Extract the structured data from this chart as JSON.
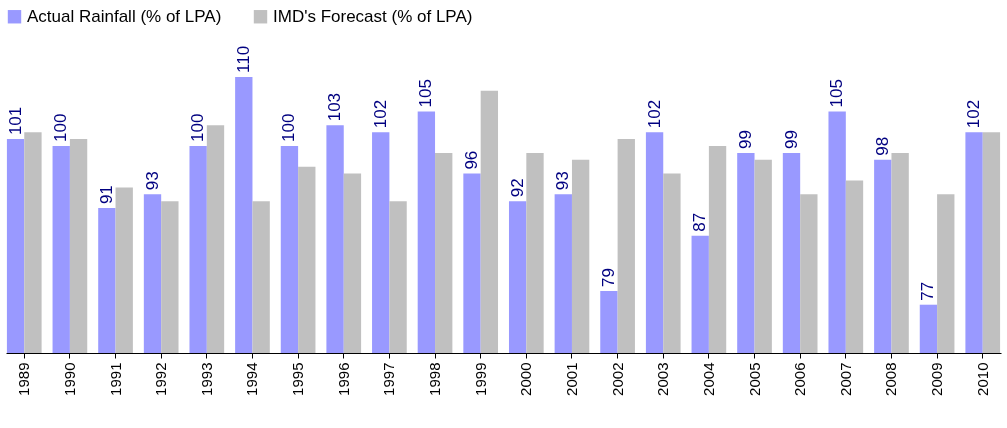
{
  "chart_data": {
    "type": "bar",
    "categories": [
      "1989",
      "1990",
      "1991",
      "1992",
      "1993",
      "1994",
      "1995",
      "1996",
      "1997",
      "1998",
      "1999",
      "2000",
      "2001",
      "2002",
      "2003",
      "2004",
      "2005",
      "2006",
      "2007",
      "2008",
      "2009",
      "2010"
    ],
    "series": [
      {
        "name": "Actual Rainfall (% of LPA)",
        "color": "#9999ff",
        "values": [
          101,
          100,
          91,
          93,
          100,
          110,
          100,
          103,
          102,
          105,
          96,
          92,
          93,
          79,
          102,
          87,
          99,
          99,
          105,
          98,
          77,
          102
        ],
        "value_labels": [
          "101",
          "100",
          "91",
          "93",
          "100",
          "110",
          "100",
          "103",
          "102",
          "105",
          "96",
          "92",
          "93",
          "79",
          "102",
          "87",
          "99",
          "99",
          "105",
          "98",
          "77",
          "102"
        ]
      },
      {
        "name": "IMD's Forecast (% of LPA)",
        "color": "#c0c0c0",
        "values": [
          102,
          101,
          94,
          92,
          103,
          92,
          97,
          96,
          92,
          99,
          108,
          99,
          98,
          101,
          96,
          100,
          98,
          93,
          95,
          99,
          93,
          102
        ]
      }
    ],
    "ylim": [
      70,
      110
    ],
    "legend": "top"
  }
}
